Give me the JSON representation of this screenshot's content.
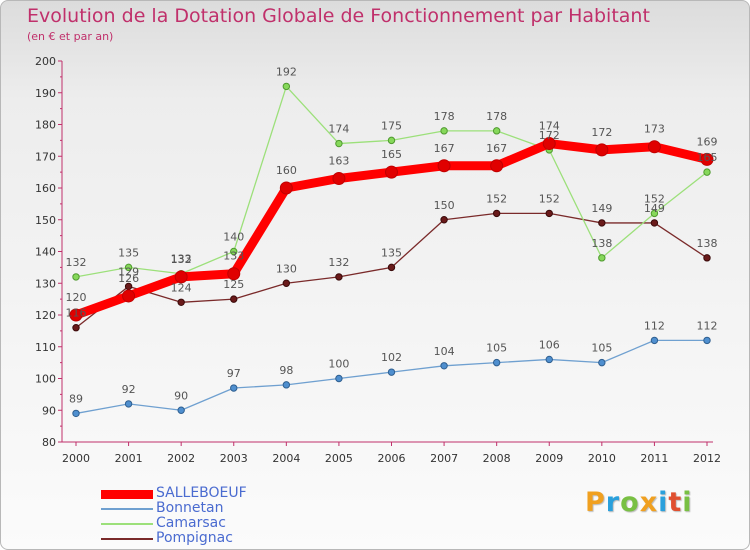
{
  "chart_data": {
    "type": "line",
    "title": "Evolution de la Dotation Globale de Fonctionnement par Habitant",
    "subtitle": "(en € et par an)",
    "xlabel": "",
    "ylabel": "",
    "categories": [
      "2000",
      "2001",
      "2002",
      "2003",
      "2004",
      "2005",
      "2006",
      "2007",
      "2008",
      "2009",
      "2010",
      "2011",
      "2012"
    ],
    "ylim": [
      80,
      200
    ],
    "yticks": [
      80,
      90,
      100,
      110,
      120,
      130,
      140,
      150,
      160,
      170,
      180,
      190,
      200
    ],
    "grid": false,
    "legend_position": "bottom-left",
    "series": [
      {
        "name": "SALLEBOEUF",
        "color": "#ff0000",
        "values": [
          120,
          126,
          132,
          133,
          160,
          163,
          165,
          167,
          167,
          174,
          172,
          173,
          169
        ],
        "labels": [
          "120",
          "126",
          "132",
          "133",
          "160",
          "163",
          "165",
          "167",
          "167",
          "174",
          "172",
          "173",
          "169"
        ]
      },
      {
        "name": "Bonnetan",
        "color": "#6fa0d0",
        "values": [
          89,
          92,
          90,
          97,
          98,
          100,
          102,
          104,
          105,
          106,
          105,
          112,
          112
        ],
        "labels": [
          "89",
          "92",
          "90",
          "97",
          "98",
          "100",
          "102",
          "104",
          "105",
          "106",
          "105",
          "112",
          "112"
        ]
      },
      {
        "name": "Camarsac",
        "color": "#9ce07a",
        "values": [
          132,
          135,
          133,
          140,
          192,
          174,
          175,
          178,
          178,
          172,
          138,
          152,
          165
        ],
        "labels": [
          "132",
          "135",
          "133",
          "140",
          "192",
          "174",
          "175",
          "178",
          "178",
          "172",
          "138",
          "152",
          "165"
        ]
      },
      {
        "name": "Pompignac",
        "color": "#7a2a2a",
        "values": [
          116,
          129,
          124,
          125,
          130,
          132,
          135,
          150,
          152,
          152,
          149,
          149,
          138
        ],
        "labels": [
          "116",
          "129",
          "124",
          "125",
          "130",
          "132",
          "135",
          "150",
          "152",
          "152",
          "149",
          "149",
          "138"
        ]
      }
    ]
  },
  "branding": {
    "logo_letters": [
      "P",
      "r",
      "o",
      "x",
      "i",
      "t",
      "i"
    ],
    "logo_colors": [
      "#f0a020",
      "#2aa0dc",
      "#79c043",
      "#f0a020",
      "#2aa0dc",
      "#e05030",
      "#79c043"
    ]
  }
}
